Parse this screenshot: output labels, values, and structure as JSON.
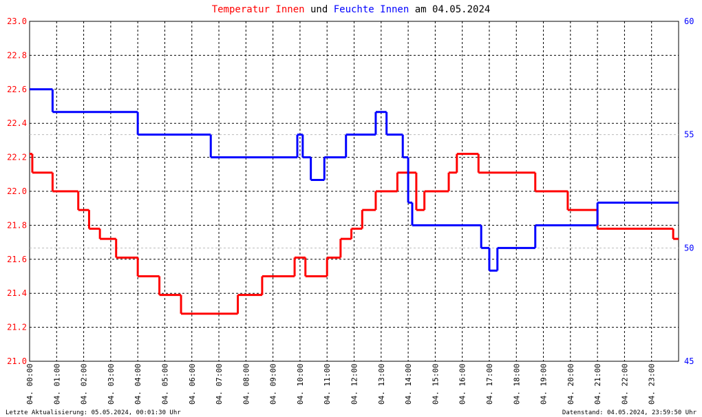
{
  "chart_data": {
    "type": "line",
    "step": true,
    "title_parts": [
      {
        "text": "Temperatur Innen",
        "color": "#ff0000"
      },
      {
        "text": "und",
        "color": "#000000"
      },
      {
        "text": "Feuchte Innen",
        "color": "#0000ff"
      },
      {
        "text": "am 04.05.2024",
        "color": "#000000"
      }
    ],
    "xlim": [
      0,
      24
    ],
    "xticks": [
      {
        "value": 0,
        "label": "04. 00:00"
      },
      {
        "value": 1,
        "label": "04. 01:00"
      },
      {
        "value": 2,
        "label": "04. 02:00"
      },
      {
        "value": 3,
        "label": "04. 03:00"
      },
      {
        "value": 4,
        "label": "04. 04:00"
      },
      {
        "value": 5,
        "label": "04. 05:00"
      },
      {
        "value": 6,
        "label": "04. 06:00"
      },
      {
        "value": 7,
        "label": "04. 07:00"
      },
      {
        "value": 8,
        "label": "04. 08:00"
      },
      {
        "value": 9,
        "label": "04. 09:00"
      },
      {
        "value": 10,
        "label": "04. 10:00"
      },
      {
        "value": 11,
        "label": "04. 11:00"
      },
      {
        "value": 12,
        "label": "04. 12:00"
      },
      {
        "value": 13,
        "label": "04. 13:00"
      },
      {
        "value": 14,
        "label": "04. 14:00"
      },
      {
        "value": 15,
        "label": "04. 15:00"
      },
      {
        "value": 16,
        "label": "04. 16:00"
      },
      {
        "value": 17,
        "label": "04. 17:00"
      },
      {
        "value": 18,
        "label": "04. 18:00"
      },
      {
        "value": 19,
        "label": "04. 19:00"
      },
      {
        "value": 20,
        "label": "04. 20:00"
      },
      {
        "value": 21,
        "label": "04. 21:00"
      },
      {
        "value": 22,
        "label": "04. 22:00"
      },
      {
        "value": 23,
        "label": "04. 23:00"
      }
    ],
    "ylim": [
      21.0,
      23.0
    ],
    "yticks": [
      {
        "value": 21.0,
        "label": "21.0"
      },
      21.2,
      21.4,
      21.6,
      21.8,
      {
        "value": 22.0,
        "label": "22.0"
      },
      22.2,
      22.4,
      22.6,
      22.8,
      {
        "value": 23.0,
        "label": "23.0"
      }
    ],
    "y2lim": [
      45,
      60
    ],
    "y2ticks": [
      45,
      50,
      55,
      60
    ],
    "grid": true,
    "series": [
      {
        "name": "Temperatur Innen",
        "color": "#ff0000",
        "x": [
          0,
          0.1,
          0.85,
          1.8,
          2.2,
          2.6,
          3.2,
          4.0,
          4.8,
          5.6,
          7.7,
          8.6,
          9.8,
          10.2,
          11.0,
          11.5,
          11.9,
          12.3,
          12.8,
          13.6,
          14.3,
          14.6,
          15.5,
          15.8,
          16.6,
          18.7,
          19.9,
          21.0,
          23.8,
          24
        ],
        "values": [
          22.22,
          22.11,
          22.0,
          21.89,
          21.78,
          21.72,
          21.61,
          21.5,
          21.39,
          21.28,
          21.39,
          21.5,
          21.61,
          21.5,
          21.61,
          21.72,
          21.78,
          21.89,
          22.0,
          22.11,
          21.89,
          22.0,
          22.11,
          22.22,
          22.11,
          22.0,
          21.89,
          21.78,
          21.72,
          21.72
        ]
      },
      {
        "name": "Feuchte Innen",
        "color": "#0000ff",
        "axis": "y2",
        "x": [
          0,
          0.85,
          4.0,
          6.7,
          9.9,
          10.1,
          10.4,
          10.9,
          11.7,
          12.8,
          13.2,
          13.8,
          14.0,
          14.15,
          16.7,
          17.0,
          17.3,
          18.7,
          21.0,
          24
        ],
        "values": [
          57,
          56,
          55,
          54,
          55,
          54,
          53,
          54,
          55,
          56,
          55,
          54,
          52,
          51,
          50,
          49,
          50,
          51,
          52,
          52
        ]
      }
    ],
    "footer_left": "Letzte Aktualisierung: 05.05.2024, 00:01:30 Uhr",
    "footer_right": "Datenstand: 04.05.2024, 23:59:50 Uhr"
  }
}
